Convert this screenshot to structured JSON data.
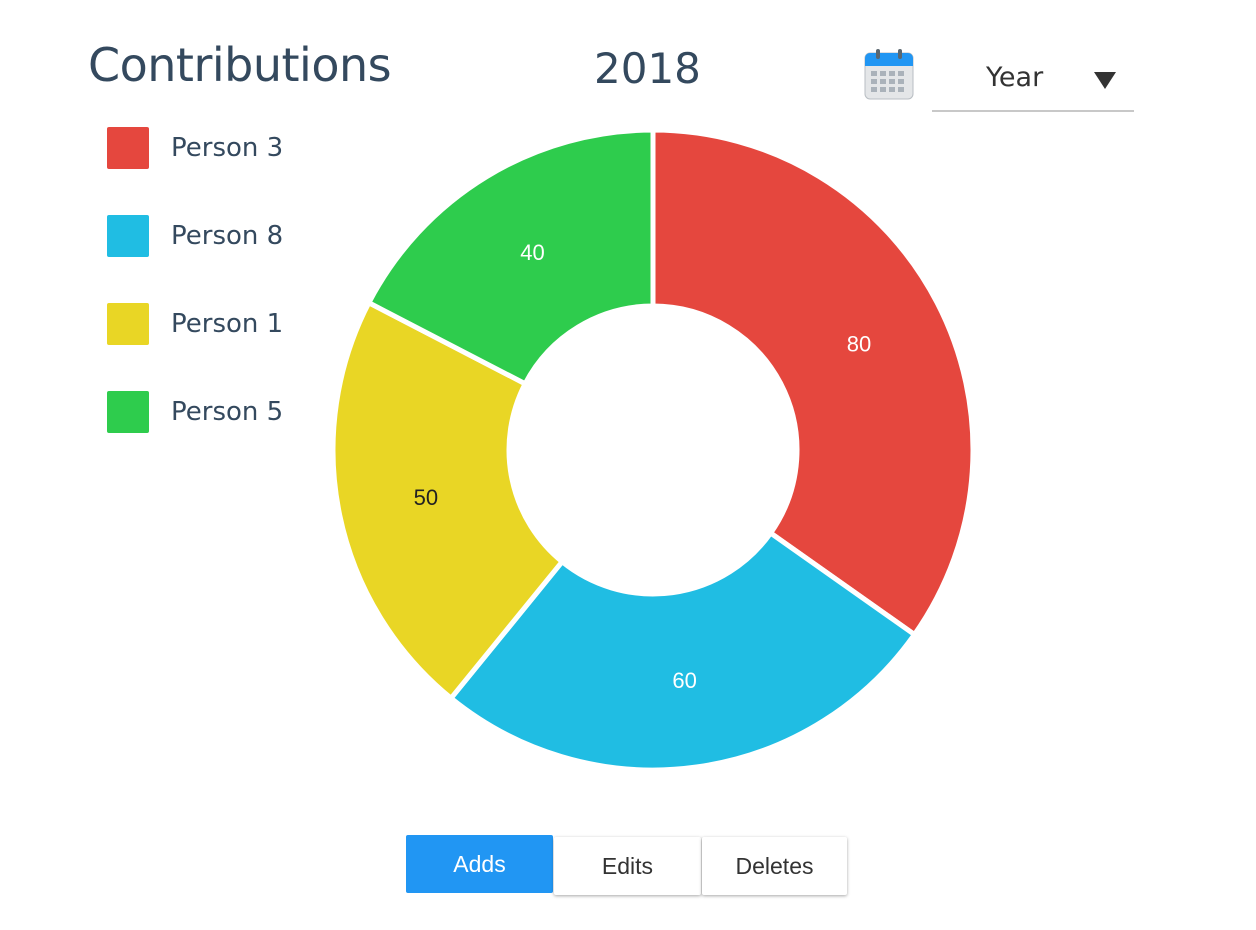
{
  "header": {
    "title": "Contributions",
    "year": "2018",
    "period_select": {
      "value": "Year"
    }
  },
  "tabs": [
    {
      "label": "Adds",
      "active": true
    },
    {
      "label": "Edits",
      "active": false
    },
    {
      "label": "Deletes",
      "active": false
    }
  ],
  "colors": {
    "accent": "#2196f3",
    "title_text": "#34495e"
  },
  "chart_data": {
    "type": "pie",
    "variant": "donut",
    "legend_position": "top-left",
    "slices": [
      {
        "label": "Person 3",
        "value": 80,
        "color": "#e5473e",
        "label_color": "#ffffff"
      },
      {
        "label": "Person 8",
        "value": 60,
        "color": "#20bde3",
        "label_color": "#ffffff"
      },
      {
        "label": "Person 1",
        "value": 50,
        "color": "#e9d625",
        "label_color": "#222222"
      },
      {
        "label": "Person 5",
        "value": 40,
        "color": "#2ecc4d",
        "label_color": "#ffffff"
      }
    ]
  }
}
